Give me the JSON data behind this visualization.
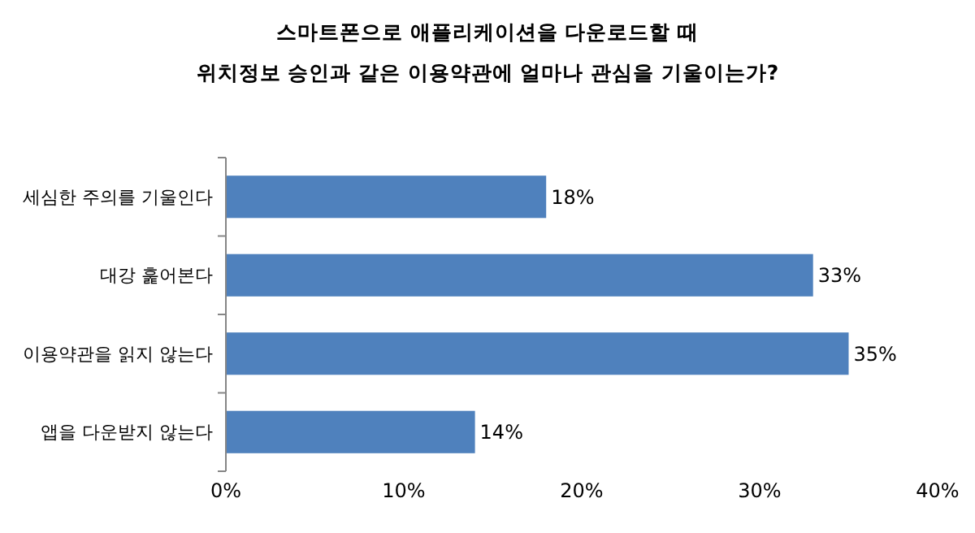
{
  "chart_data": {
    "type": "bar",
    "orientation": "horizontal",
    "title": "스마트폰으로 애플리케이션을 다운로드할 때\n위치정보 승인과 같은 이용약관에 얼마나 관심을 기울이는가?",
    "categories": [
      "세심한 주의를 기울인다",
      "대강 훑어본다",
      "이용약관을 읽지 않는다",
      "앱을 다운받지 않는다"
    ],
    "values": [
      18,
      33,
      35,
      14
    ],
    "value_labels": [
      "18%",
      "33%",
      "35%",
      "14%"
    ],
    "color": "#4f81bd",
    "xlim": [
      0,
      40
    ],
    "xticks": [
      {
        "value": 0,
        "label": "0%"
      },
      {
        "value": 10,
        "label": "10%"
      },
      {
        "value": 20,
        "label": "20%"
      },
      {
        "value": 30,
        "label": "30%"
      },
      {
        "value": 40,
        "label": "40%"
      }
    ]
  }
}
